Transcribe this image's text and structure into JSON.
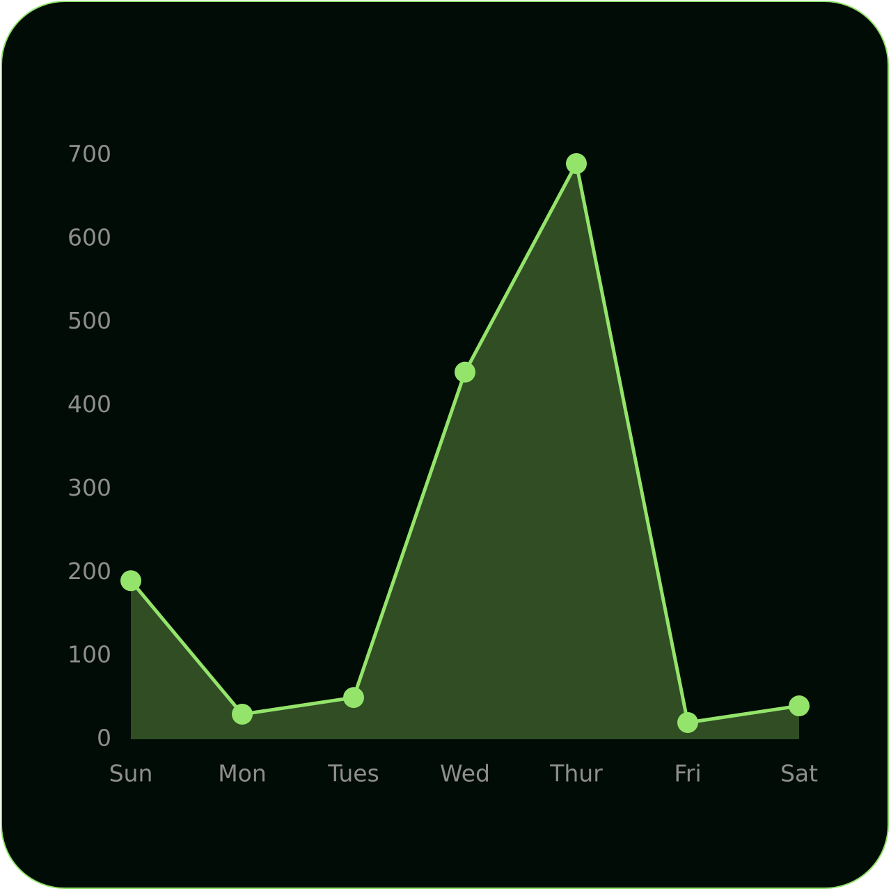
{
  "colors": {
    "background": "#000c05",
    "border": "#8fe06a",
    "line": "#94e46b",
    "area_fill": "#304d24",
    "tick_text": "#8e8e8e"
  },
  "chart_data": {
    "type": "area",
    "categories": [
      "Sun",
      "Mon",
      "Tues",
      "Wed",
      "Thur",
      "Fri",
      "Sat"
    ],
    "series": [
      {
        "values": [
          190,
          30,
          50,
          440,
          690,
          20,
          40
        ]
      }
    ],
    "yticks": [
      "0",
      "100",
      "200",
      "300",
      "400",
      "500",
      "600",
      "700"
    ],
    "ylim": [
      0,
      700
    ],
    "title": "",
    "xlabel": "",
    "ylabel": "",
    "grid": false,
    "markers": true
  }
}
